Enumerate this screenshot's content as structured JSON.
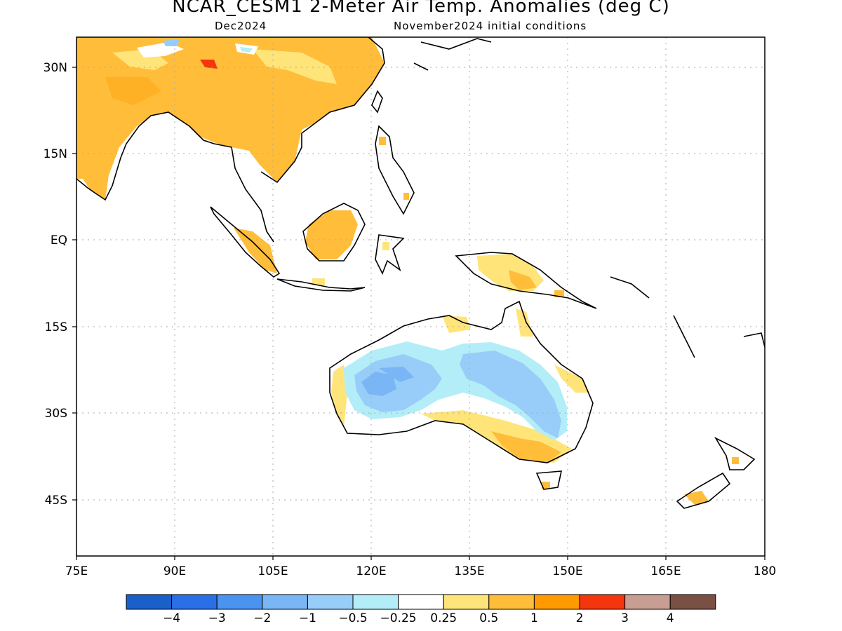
{
  "header": {
    "title": "NCAR_CESM1 2-Meter Air Temp. Anomalies (deg C)",
    "valid_month": "Dec2024",
    "init": "November2024 initial conditions"
  },
  "axes": {
    "lat_labels": [
      "30N",
      "15N",
      "EQ",
      "15S",
      "30S",
      "45S"
    ],
    "lon_labels": [
      "75E",
      "90E",
      "105E",
      "120E",
      "135E",
      "150E",
      "165E",
      "180"
    ]
  },
  "colorbar": {
    "colors": [
      "#1a60c8",
      "#2a6fe6",
      "#4a93f0",
      "#7ab6f6",
      "#97cdf8",
      "#b3eef8",
      "#ffffff",
      "#ffe47a",
      "#ffbd3a",
      "#ff9a00",
      "#f4360e",
      "#c89e92",
      "#7a5045"
    ],
    "labels": [
      "−4",
      "−3",
      "−2",
      "−1",
      "−0.5",
      "−0.25",
      "0.25",
      "0.5",
      "1",
      "2",
      "3",
      "4"
    ]
  }
}
